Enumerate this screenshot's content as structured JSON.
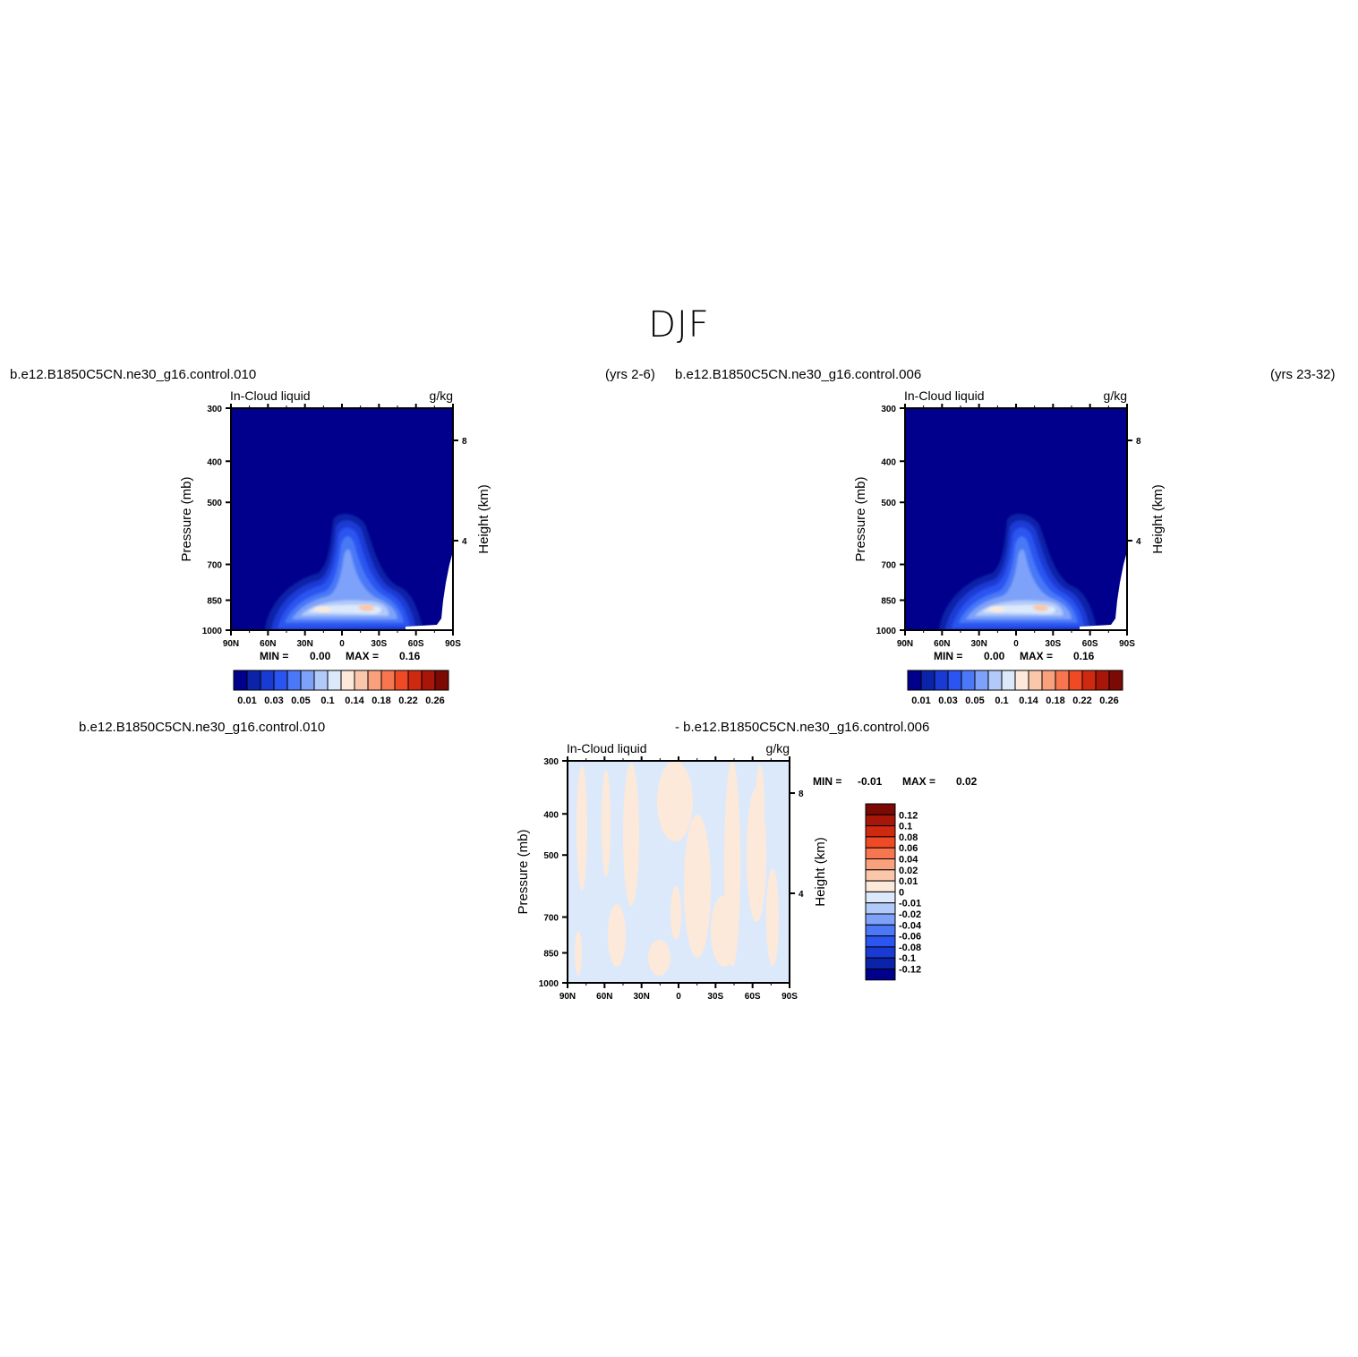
{
  "figure": {
    "title": "DJF"
  },
  "chart_data": [
    {
      "type": "heatmap",
      "case_name": "b.e12.B1850C5CN.ne30_g16.control.010",
      "years": "(yrs 2-6)",
      "title_left": "In-Cloud liquid",
      "title_right": "g/kg",
      "xlabel": "",
      "ylabel": "Pressure (mb)",
      "ylabel_right": "Height (km)",
      "x_ticks": [
        "90N",
        "60N",
        "30N",
        "0",
        "30S",
        "60S",
        "90S"
      ],
      "x_range": [
        90,
        -90
      ],
      "y_ticks": [
        300,
        400,
        500,
        700,
        850,
        1000
      ],
      "y_range": [
        1000,
        300
      ],
      "height_ticks": [
        8,
        4
      ],
      "min_label": "MIN =",
      "min_value": "0.00",
      "max_label": "MAX =",
      "max_value": "0.16",
      "colorbar": {
        "orientation": "horizontal",
        "labels": [
          "0.01",
          "0.03",
          "0.05",
          "0.1",
          "0.14",
          "0.18",
          "0.22",
          "0.26"
        ],
        "colors": [
          "#00008c",
          "#0a23a8",
          "#1a3ad4",
          "#2b55f0",
          "#4a78f7",
          "#7ea2f9",
          "#b2caf9",
          "#dce9fb",
          "#fde9d9",
          "#fbc7aa",
          "#f9a07c",
          "#f7764f",
          "#ef4a24",
          "#cf2a10",
          "#a71608",
          "#7c0a04"
        ]
      },
      "summary": "Cloud liquid maxima near 850-900 mb between 30N and 60S, peak ~0.16 g/kg near 15S; secondary column up to ~550 mb near equator"
    },
    {
      "type": "heatmap",
      "case_name": "b.e12.B1850C5CN.ne30_g16.control.006",
      "years": "(yrs 23-32)",
      "title_left": "In-Cloud liquid",
      "title_right": "g/kg",
      "xlabel": "",
      "ylabel": "Pressure (mb)",
      "ylabel_right": "Height (km)",
      "x_ticks": [
        "90N",
        "60N",
        "30N",
        "0",
        "30S",
        "60S",
        "90S"
      ],
      "x_range": [
        90,
        -90
      ],
      "y_ticks": [
        300,
        400,
        500,
        700,
        850,
        1000
      ],
      "y_range": [
        1000,
        300
      ],
      "height_ticks": [
        8,
        4
      ],
      "min_label": "MIN =",
      "min_value": "0.00",
      "max_label": "MAX =",
      "max_value": "0.16",
      "colorbar": {
        "orientation": "horizontal",
        "labels": [
          "0.01",
          "0.03",
          "0.05",
          "0.1",
          "0.14",
          "0.18",
          "0.22",
          "0.26"
        ],
        "colors": [
          "#00008c",
          "#0a23a8",
          "#1a3ad4",
          "#2b55f0",
          "#4a78f7",
          "#7ea2f9",
          "#b2caf9",
          "#dce9fb",
          "#fde9d9",
          "#fbc7aa",
          "#f9a07c",
          "#f7764f",
          "#ef4a24",
          "#cf2a10",
          "#a71608",
          "#7c0a04"
        ]
      }
    },
    {
      "type": "heatmap",
      "case_left": "b.e12.B1850C5CN.ne30_g16.control.010",
      "case_right": "- b.e12.B1850C5CN.ne30_g16.control.006",
      "title_left": "In-Cloud liquid",
      "title_right": "g/kg",
      "ylabel": "Pressure (mb)",
      "ylabel_right": "Height (km)",
      "x_ticks": [
        "90N",
        "60N",
        "30N",
        "0",
        "30S",
        "60S",
        "90S"
      ],
      "x_range": [
        90,
        -90
      ],
      "y_ticks": [
        300,
        400,
        500,
        700,
        850,
        1000
      ],
      "y_range": [
        1000,
        300
      ],
      "height_ticks": [
        8,
        4
      ],
      "min_label": "MIN =",
      "min_value": "-0.01",
      "max_label": "MAX =",
      "max_value": "0.02",
      "colorbar": {
        "orientation": "vertical",
        "labels": [
          "0.12",
          "0.1",
          "0.08",
          "0.06",
          "0.04",
          "0.02",
          "0.01",
          "0",
          "-0.01",
          "-0.02",
          "-0.04",
          "-0.06",
          "-0.08",
          "-0.1",
          "-0.12"
        ],
        "colors": [
          "#7c0a04",
          "#a71608",
          "#cf2a10",
          "#ef4a24",
          "#f7764f",
          "#f9a07c",
          "#fbc7aa",
          "#fde9d9",
          "#dce9fb",
          "#b2caf9",
          "#7ea2f9",
          "#4a78f7",
          "#2b55f0",
          "#1a3ad4",
          "#0a23a8",
          "#00008c"
        ]
      },
      "summary": "Differences are near zero everywhere, alternating light blue (-0.01 to 0) and light peach (0 to 0.01) bands"
    }
  ]
}
